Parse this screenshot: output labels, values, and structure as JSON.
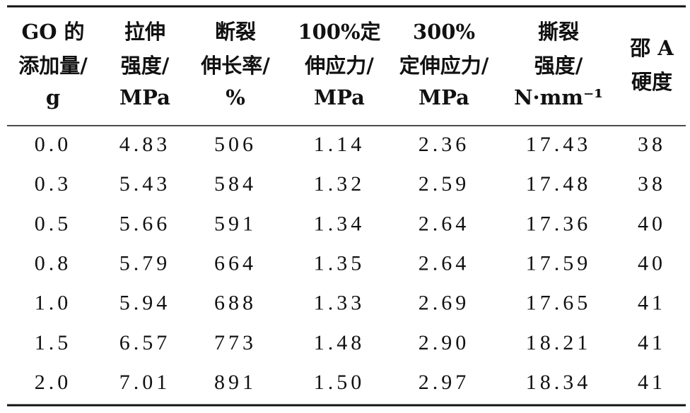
{
  "table": {
    "header": [
      [
        "GO 的",
        "添加量/",
        "g"
      ],
      [
        "拉伸",
        "强度/",
        "MPa"
      ],
      [
        "断裂",
        "伸长率/",
        "%"
      ],
      [
        "100%定",
        "伸应力/",
        "MPa"
      ],
      [
        "300%",
        "定伸应力/",
        "MPa"
      ],
      [
        "撕裂",
        "强度/",
        "N·mm⁻¹"
      ],
      [
        "邵 A",
        "硬度"
      ]
    ],
    "rows": [
      [
        "0.0",
        "4.83",
        "506",
        "1.14",
        "2.36",
        "17.43",
        "38"
      ],
      [
        "0.3",
        "5.43",
        "584",
        "1.32",
        "2.59",
        "17.48",
        "38"
      ],
      [
        "0.5",
        "5.66",
        "591",
        "1.34",
        "2.64",
        "17.36",
        "40"
      ],
      [
        "0.8",
        "5.79",
        "664",
        "1.35",
        "2.64",
        "17.59",
        "40"
      ],
      [
        "1.0",
        "5.94",
        "688",
        "1.33",
        "2.69",
        "17.65",
        "41"
      ],
      [
        "1.5",
        "6.57",
        "773",
        "1.48",
        "2.90",
        "18.21",
        "41"
      ],
      [
        "2.0",
        "7.01",
        "891",
        "1.50",
        "2.97",
        "18.34",
        "41"
      ]
    ]
  }
}
